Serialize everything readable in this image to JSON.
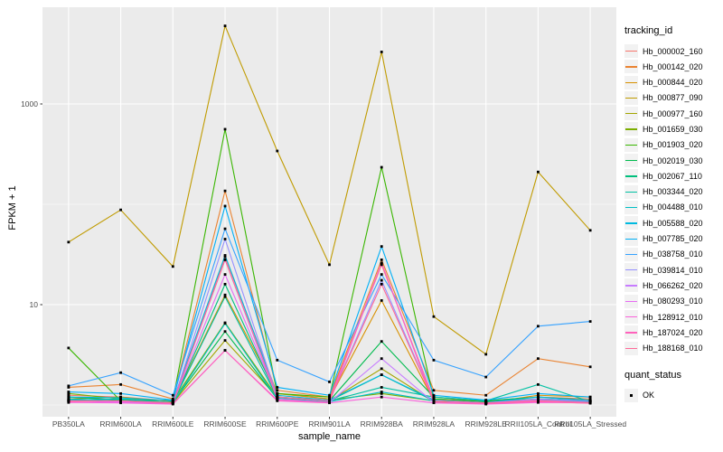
{
  "chart_data": {
    "type": "line",
    "title": "",
    "xlabel": "sample_name",
    "ylabel": "FPKM + 1",
    "y_scale": "log10",
    "ylim": [
      0.76,
      9200
    ],
    "grid": true,
    "legend_position": "right",
    "categories": [
      "PB350LA",
      "RRIM600LA",
      "RRIM600LE",
      "RRIM600SE",
      "RRIM600PE",
      "RRIM901LA",
      "RRIM928BA",
      "RRIM928LA",
      "RRIM928LE",
      "RRII105LA_Control",
      "RRII105LA_Stressed"
    ],
    "y_ticks": [
      {
        "label": "1000",
        "value": 1000
      },
      {
        "label": "10",
        "value": 10
      }
    ],
    "y_minor_values": [
      1,
      100
    ],
    "series": [
      {
        "name": "Hb_000002_160",
        "color": "#F8766D",
        "values": [
          1.25,
          1.2,
          1.1,
          30,
          1.3,
          1.15,
          25,
          1.15,
          1.1,
          1.2,
          1.15
        ]
      },
      {
        "name": "Hb_000142_020",
        "color": "#EA8331",
        "values": [
          1.5,
          1.6,
          1.15,
          136,
          1.4,
          1.2,
          28,
          1.4,
          1.25,
          2.9,
          2.4
        ]
      },
      {
        "name": "Hb_000844_020",
        "color": "#D89000",
        "values": [
          1.15,
          1.2,
          1.08,
          12.5,
          1.3,
          1.15,
          11,
          1.1,
          1.05,
          1.25,
          1.2
        ]
      },
      {
        "name": "Hb_000877_090",
        "color": "#C09B00",
        "values": [
          42,
          88,
          24,
          6000,
          340,
          25,
          3300,
          7.6,
          3.2,
          210,
          55
        ]
      },
      {
        "name": "Hb_000977_160",
        "color": "#A3A500",
        "values": [
          1.1,
          1.1,
          1.05,
          4.4,
          1.2,
          1.1,
          2.3,
          1.08,
          1.05,
          1.12,
          1.1
        ]
      },
      {
        "name": "Hb_001659_030",
        "color": "#7CAE00",
        "values": [
          1.3,
          1.15,
          1.1,
          6.6,
          1.2,
          1.12,
          1.3,
          1.1,
          1.05,
          1.15,
          1.1
        ]
      },
      {
        "name": "Hb_001903_020",
        "color": "#39B600",
        "values": [
          3.7,
          1.1,
          1.12,
          560,
          1.3,
          1.2,
          234,
          1.15,
          1.08,
          1.15,
          1.1
        ]
      },
      {
        "name": "Hb_002019_030",
        "color": "#00BB4E",
        "values": [
          1.2,
          1.12,
          1.06,
          5.4,
          1.15,
          1.1,
          4.3,
          1.2,
          1.1,
          1.2,
          1.12
        ]
      },
      {
        "name": "Hb_002067_110",
        "color": "#00BF7D",
        "values": [
          1.12,
          1.08,
          1.05,
          16,
          1.2,
          1.1,
          2.0,
          1.1,
          1.05,
          1.12,
          1.08
        ]
      },
      {
        "name": "Hb_003344_020",
        "color": "#00C1A3",
        "values": [
          1.15,
          1.1,
          1.06,
          12,
          1.18,
          1.1,
          1.5,
          1.2,
          1.1,
          1.6,
          1.08
        ]
      },
      {
        "name": "Hb_004488_010",
        "color": "#00BFC4",
        "values": [
          1.12,
          1.15,
          1.05,
          6.5,
          1.15,
          1.08,
          1.35,
          1.1,
          1.05,
          1.12,
          1.1
        ]
      },
      {
        "name": "Hb_005588_020",
        "color": "#00BAE0",
        "values": [
          1.2,
          1.18,
          1.1,
          31,
          1.25,
          1.12,
          2.0,
          1.12,
          1.06,
          1.2,
          1.1
        ]
      },
      {
        "name": "Hb_007785_020",
        "color": "#00B0F6",
        "values": [
          1.35,
          1.3,
          1.12,
          96,
          1.5,
          1.25,
          38,
          1.25,
          1.12,
          1.3,
          1.2
        ]
      },
      {
        "name": "Hb_038758_010",
        "color": "#35A2FF",
        "values": [
          1.55,
          2.1,
          1.25,
          57,
          2.8,
          1.7,
          20,
          2.8,
          1.9,
          6.1,
          6.8
        ]
      },
      {
        "name": "Hb_039814_010",
        "color": "#9590FF",
        "values": [
          1.1,
          1.1,
          1.05,
          45,
          1.2,
          1.1,
          17.5,
          1.1,
          1.05,
          1.15,
          1.1
        ]
      },
      {
        "name": "Hb_066262_020",
        "color": "#C77CFF",
        "values": [
          1.1,
          1.06,
          1.04,
          28,
          1.15,
          1.06,
          2.9,
          1.06,
          1.04,
          1.1,
          1.06
        ]
      },
      {
        "name": "Hb_080293_010",
        "color": "#E76BF3",
        "values": [
          1.1,
          1.08,
          1.05,
          20,
          1.2,
          1.1,
          26,
          1.1,
          1.05,
          1.12,
          1.06
        ]
      },
      {
        "name": "Hb_128912_010",
        "color": "#FA62DB",
        "values": [
          1.06,
          1.05,
          1.02,
          3.5,
          1.1,
          1.05,
          1.2,
          1.05,
          1.02,
          1.06,
          1.05
        ]
      },
      {
        "name": "Hb_187024_020",
        "color": "#FF62BC",
        "values": [
          1.08,
          1.1,
          1.03,
          3.5,
          1.12,
          1.06,
          26,
          1.06,
          1.03,
          1.08,
          1.04
        ]
      },
      {
        "name": "Hb_188168_010",
        "color": "#FF6A98",
        "values": [
          1.1,
          1.1,
          1.05,
          28,
          1.2,
          1.1,
          16,
          1.1,
          1.05,
          1.1,
          1.05
        ]
      }
    ]
  },
  "legend": {
    "tracking_title": "tracking_id",
    "quant_title": "quant_status",
    "quant_items": [
      {
        "label": "OK",
        "marker": "black-square"
      }
    ]
  },
  "colors": {
    "panel_background": "#EBEBEB",
    "gridline": "#FFFFFF",
    "tick_text": "#4D4D4D",
    "axis_title_text": "#000000",
    "point": "#000000",
    "legend_key_background": "#F2F2F2",
    "tick_mark": "#333333"
  }
}
